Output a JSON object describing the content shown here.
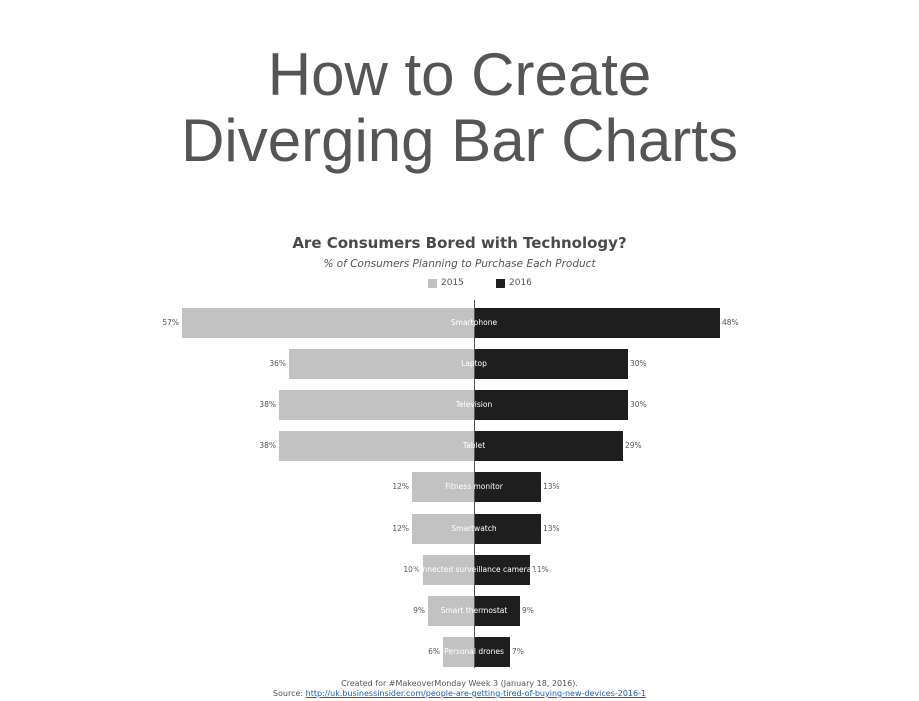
{
  "header": {
    "title_line1": "How to Create",
    "title_line2": "Diverging Bar Charts"
  },
  "chart": {
    "title": "Are Consumers Bored with Technology?",
    "subtitle": "% of Consumers Planning to Purchase Each Product",
    "legend": [
      {
        "label": "2015",
        "color": "#c2c2c2"
      },
      {
        "label": "2016",
        "color": "#1e1e1e"
      }
    ]
  },
  "footer": {
    "created": "Created for #MakeoverMonday Week 3 (January 18, 2016).",
    "source_prefix": "Source: ",
    "source_link": "http://uk.businessinsider.com/people-are-getting-tired-of-buying-new-devices-2016-1"
  },
  "chart_data": {
    "type": "bar",
    "orientation": "horizontal-diverging",
    "title": "Are Consumers Bored with Technology?",
    "subtitle": "% of Consumers Planning to Purchase Each Product",
    "xlabel": "",
    "ylabel": "",
    "categories": [
      "Smartphone",
      "Laptop",
      "Television",
      "Tablet",
      "Fitness monitor",
      "Smartwatch",
      "Connected surveillance cameras",
      "Smart thermostat",
      "Personal drones"
    ],
    "series": [
      {
        "name": "2015",
        "color": "#c2c2c2",
        "direction": "left",
        "values": [
          57,
          36,
          38,
          38,
          12,
          12,
          10,
          9,
          6
        ],
        "labels": [
          "57%",
          "36%",
          "38%",
          "38%",
          "12%",
          "12%",
          "10%",
          "9%",
          "6%"
        ]
      },
      {
        "name": "2016",
        "color": "#1e1e1e",
        "direction": "right",
        "values": [
          48,
          30,
          30,
          29,
          13,
          13,
          11,
          9,
          7
        ],
        "labels": [
          "48%",
          "30%",
          "30%",
          "29%",
          "13%",
          "13%",
          "11%",
          "9%",
          "7%"
        ]
      }
    ],
    "legend_position": "top",
    "grid": false,
    "units": "%"
  }
}
